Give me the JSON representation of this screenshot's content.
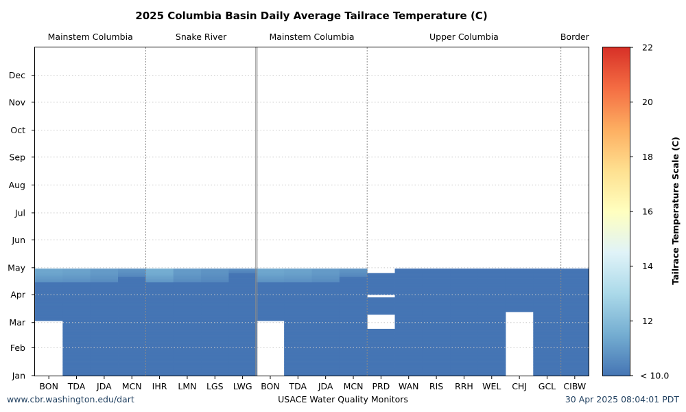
{
  "chart_data": {
    "type": "heatmap",
    "title": "2025 Columbia Basin Daily Average Tailrace Temperature (C)",
    "xlabel": "USACE Water Quality Monitors",
    "ylabel": "",
    "colorbar_label": "Tailrace Temperature Scale (C)",
    "colorbar_ticks": [
      "< 10.0",
      "12",
      "14",
      "16",
      "18",
      "20",
      "22"
    ],
    "color_range": [
      10,
      22
    ],
    "groups": [
      {
        "label": "Mainstem Columbia",
        "stations": [
          "BON",
          "TDA",
          "JDA",
          "MCN"
        ]
      },
      {
        "label": "Snake River",
        "stations": [
          "IHR",
          "LMN",
          "LGS",
          "LWG"
        ]
      },
      {
        "label": "Mainstem Columbia",
        "stations": [
          "BON",
          "TDA",
          "JDA",
          "MCN"
        ]
      },
      {
        "label": "Upper Columbia",
        "stations": [
          "PRD",
          "WAN",
          "RIS",
          "RRH",
          "WEL",
          "CHJ",
          "GCL"
        ]
      },
      {
        "label": "Border",
        "stations": [
          "CIBW"
        ]
      }
    ],
    "months": [
      "Jan",
      "Feb",
      "Mar",
      "Apr",
      "May",
      "Jun",
      "Jul",
      "Aug",
      "Sep",
      "Oct",
      "Nov",
      "Dec"
    ],
    "data_end_date": "2025-04-30",
    "cells_note": "Daily average temperature by station and day; values below 10 C show as the lowest color. Missing days blank.",
    "station_data": [
      {
        "station": "BON",
        "start": "2025-03-03",
        "warm_from": "2025-04-15",
        "late_april_c": 11.3
      },
      {
        "station": "TDA",
        "start": "2025-01-01",
        "warm_from": "2025-04-15",
        "late_april_c": 11.2
      },
      {
        "station": "JDA",
        "start": "2025-01-01",
        "warm_from": "2025-04-15",
        "late_april_c": 11.0
      },
      {
        "station": "MCN",
        "start": "2025-01-01",
        "warm_from": "2025-04-21",
        "late_april_c": 10.8
      },
      {
        "station": "IHR",
        "start": "2025-01-01",
        "warm_from": "2025-04-15",
        "late_april_c": 11.5
      },
      {
        "station": "LMN",
        "start": "2025-01-01",
        "warm_from": "2025-04-15",
        "late_april_c": 11.0
      },
      {
        "station": "LGS",
        "start": "2025-01-01",
        "warm_from": "2025-04-15",
        "late_april_c": 10.8
      },
      {
        "station": "LWG",
        "start": "2025-01-01",
        "warm_from": "2025-04-25",
        "late_april_c": 10.6
      },
      {
        "station": "BON",
        "start": "2025-03-03",
        "warm_from": "2025-04-15",
        "late_april_c": 11.3
      },
      {
        "station": "TDA",
        "start": "2025-01-01",
        "warm_from": "2025-04-15",
        "late_april_c": 11.2
      },
      {
        "station": "JDA",
        "start": "2025-01-01",
        "warm_from": "2025-04-15",
        "late_april_c": 11.0
      },
      {
        "station": "MCN",
        "start": "2025-01-01",
        "warm_from": "2025-04-21",
        "late_april_c": 10.8
      },
      {
        "station": "PRD",
        "start": "2025-01-01",
        "end": "2025-04-25",
        "gaps": [
          [
            "2025-02-22",
            "2025-03-10"
          ],
          [
            "2025-03-29",
            "2025-04-01"
          ]
        ],
        "warm_from": "",
        "late_april_c": 10.0
      },
      {
        "station": "WAN",
        "start": "2025-01-01",
        "warm_from": "",
        "late_april_c": 10.0
      },
      {
        "station": "RIS",
        "start": "2025-01-01",
        "warm_from": "",
        "late_april_c": 10.0
      },
      {
        "station": "RRH",
        "start": "2025-01-01",
        "warm_from": "",
        "late_april_c": 10.0
      },
      {
        "station": "WEL",
        "start": "2025-01-01",
        "warm_from": "",
        "late_april_c": 10.0
      },
      {
        "station": "CHJ",
        "start": "2025-03-13",
        "warm_from": "",
        "late_april_c": 10.0
      },
      {
        "station": "GCL",
        "start": "2025-01-01",
        "warm_from": "",
        "late_april_c": 10.0
      },
      {
        "station": "CIBW",
        "start": "2025-01-01",
        "warm_from": "",
        "late_april_c": 10.0
      }
    ],
    "colors": {
      "cold": "#4575b4",
      "scale": [
        "#4575b4",
        "#74add1",
        "#abd9e9",
        "#e0f3f8",
        "#ffffbf",
        "#fee090",
        "#fdae61",
        "#f46d43",
        "#d73027"
      ],
      "frame": "#000000",
      "gridline": "#c8c8c8",
      "separator": "#8a8a8a"
    },
    "grid": true
  },
  "footer": {
    "left": "www.cbr.washington.edu/dart",
    "center": "USACE Water Quality Monitors",
    "right": "30 Apr 2025 08:04:01 PDT"
  }
}
